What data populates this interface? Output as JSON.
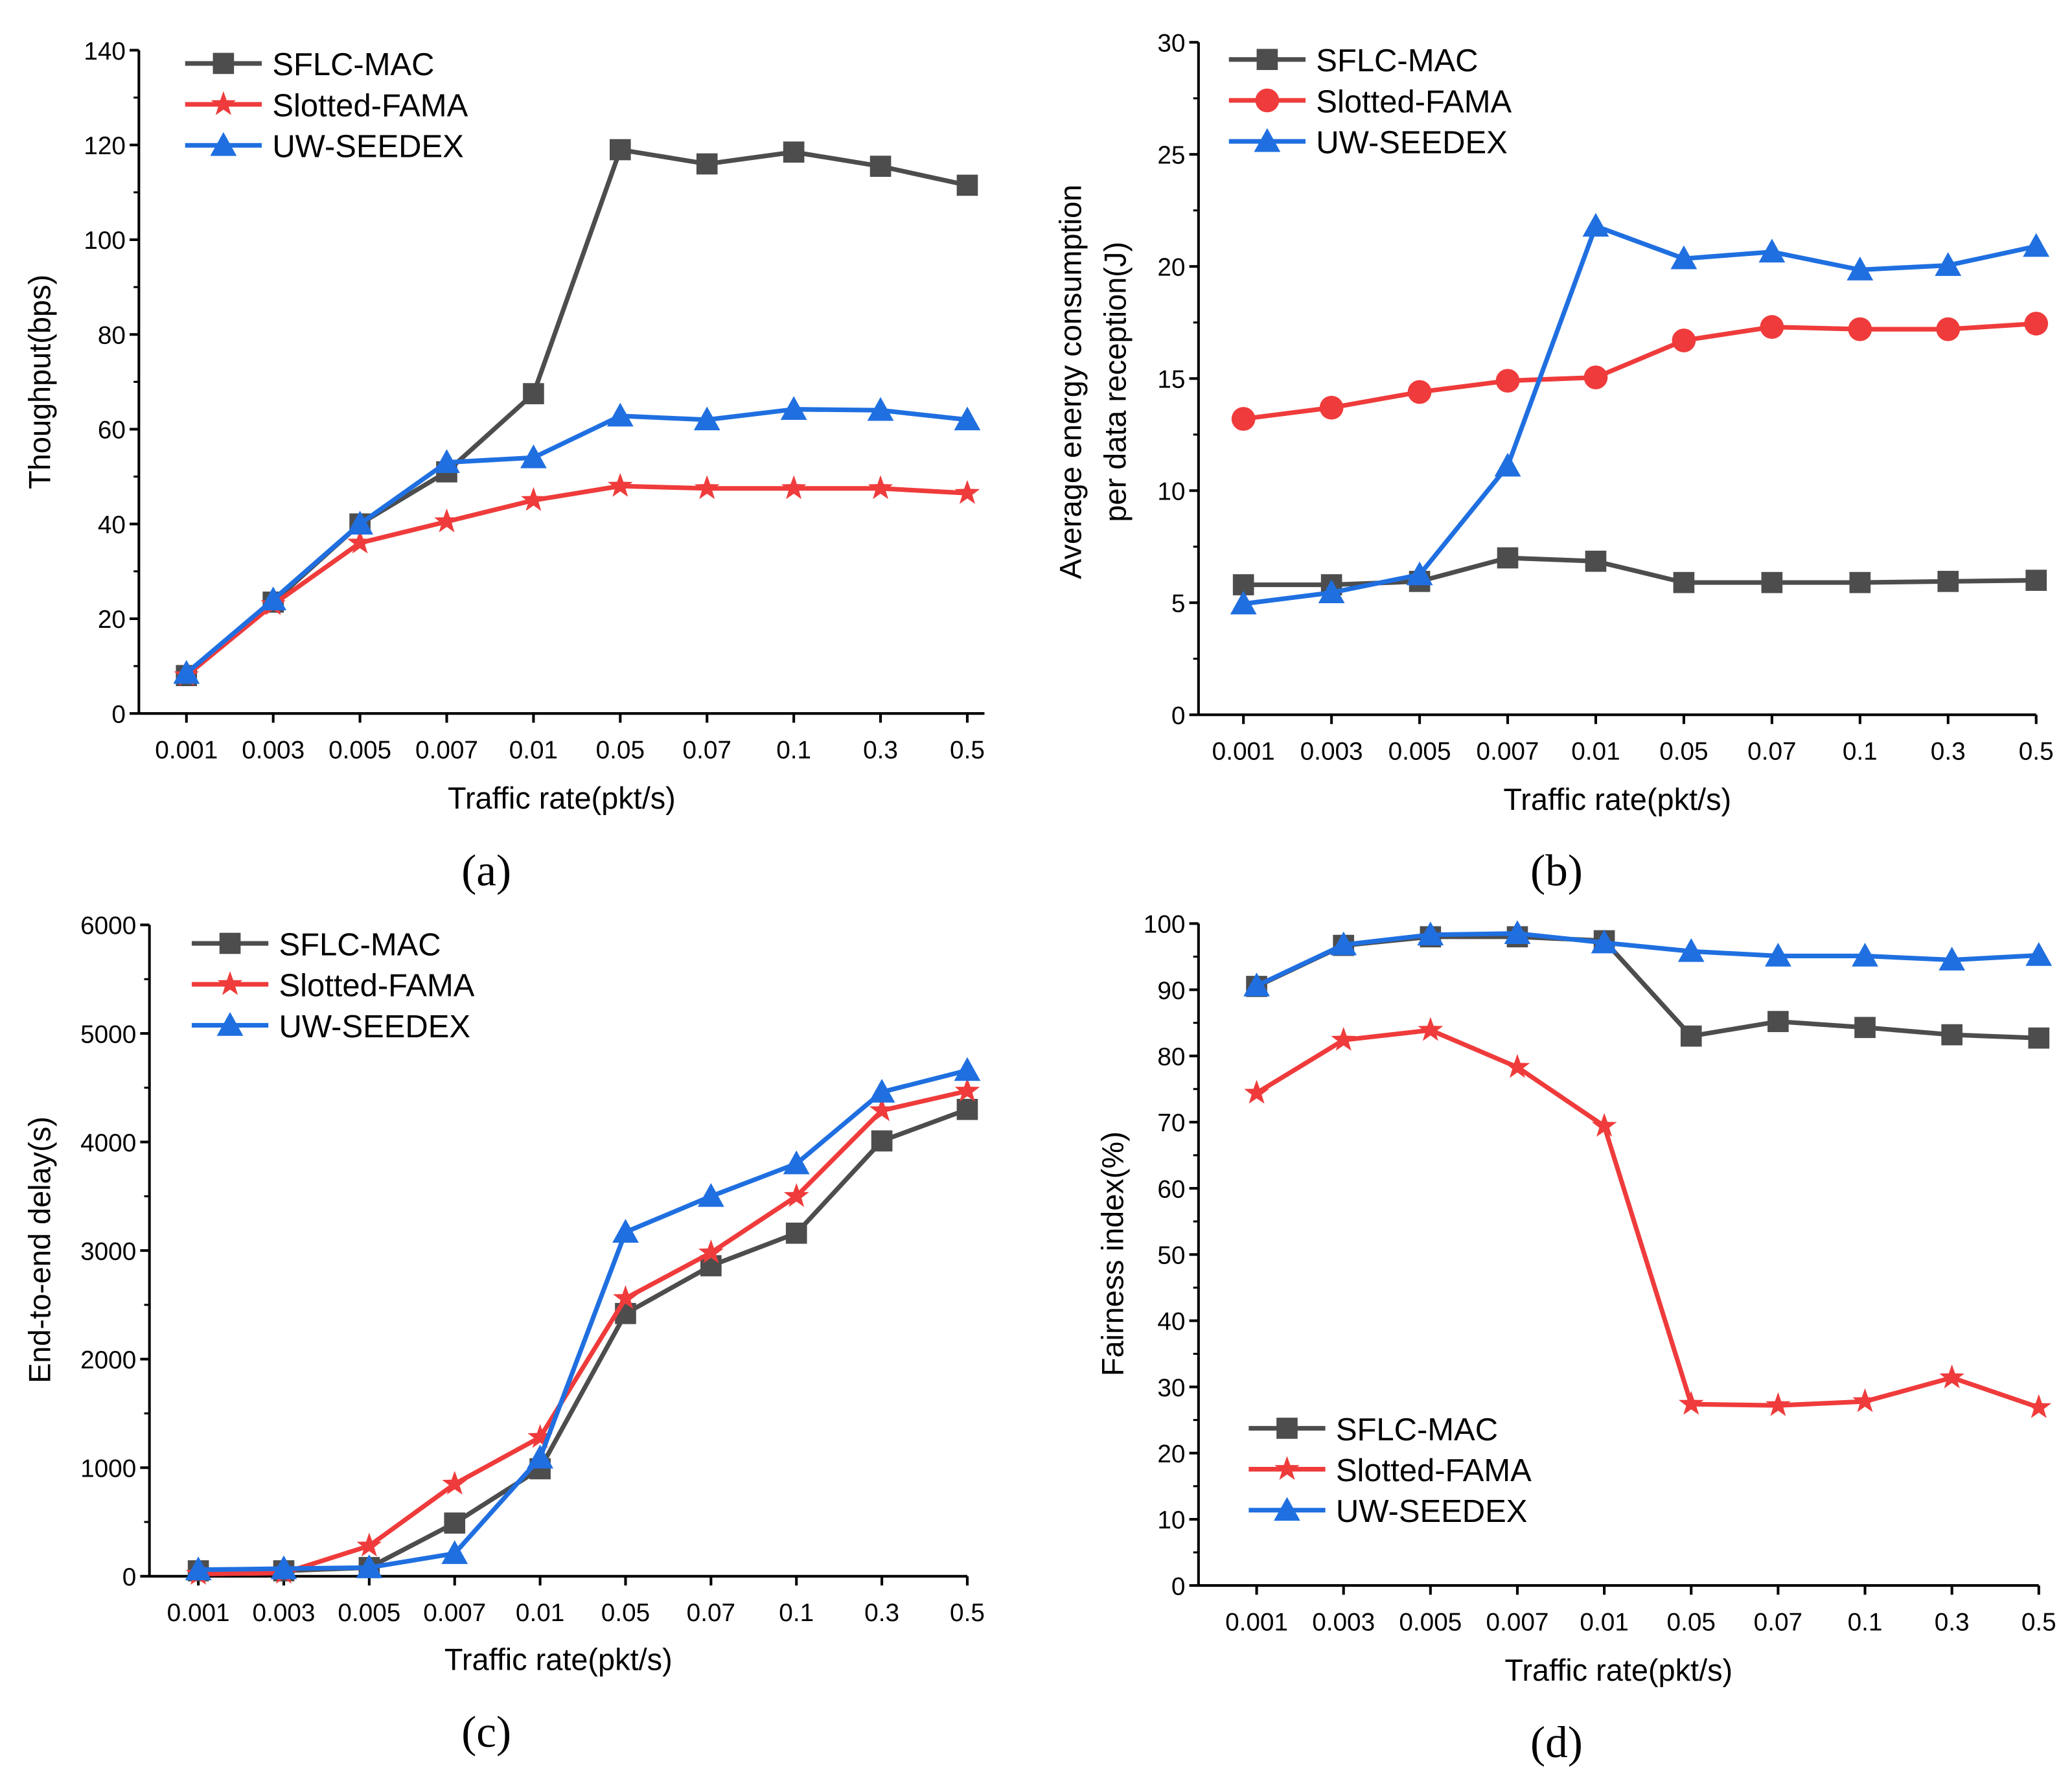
{
  "colors": {
    "SFLC-MAC": "#4d4d4d",
    "Slotted-FAMA": "#ef3b3b",
    "UW-SEEDEX": "#1f6fe0"
  },
  "chart_data": [
    {
      "id": "a",
      "caption": "(a)",
      "type": "line",
      "xlabel": "Traffic rate(pkt/s)",
      "ylabel": [
        "Thoughput(bps)"
      ],
      "categories": [
        "0.001",
        "0.003",
        "0.005",
        "0.007",
        "0.01",
        "0.05",
        "0.07",
        "0.1",
        "0.3",
        "0.5"
      ],
      "ylim": [
        0,
        140
      ],
      "yticks": [
        0,
        20,
        40,
        60,
        80,
        100,
        120,
        140
      ],
      "legend": "top-left",
      "series": [
        {
          "name": "SFLC-MAC",
          "marker": "square",
          "values": [
            8,
            23.5,
            40,
            51,
            67.5,
            119,
            116,
            118.5,
            115.5,
            111.5
          ]
        },
        {
          "name": "Slotted-FAMA",
          "marker": "star",
          "values": [
            8,
            23,
            36,
            40.5,
            45,
            48,
            47.5,
            47.5,
            47.5,
            46.5
          ]
        },
        {
          "name": "UW-SEEDEX",
          "marker": "triangle",
          "values": [
            8.5,
            24,
            40,
            53,
            54,
            62.8,
            62,
            64.2,
            64,
            62
          ]
        }
      ]
    },
    {
      "id": "b",
      "caption": "(b)",
      "type": "line",
      "xlabel": "Traffic rate(pkt/s)",
      "ylabel": [
        "Average energy consumption",
        "per data reception(J)"
      ],
      "categories": [
        "0.001",
        "0.003",
        "0.005",
        "0.007",
        "0.01",
        "0.05",
        "0.07",
        "0.1",
        "0.3",
        "0.5"
      ],
      "ylim": [
        0,
        30
      ],
      "yticks": [
        0,
        5,
        10,
        15,
        20,
        25,
        30
      ],
      "legend": "top-left",
      "series": [
        {
          "name": "SFLC-MAC",
          "marker": "square",
          "values": [
            5.8,
            5.8,
            5.95,
            7.0,
            6.85,
            5.9,
            5.9,
            5.9,
            5.95,
            6.0
          ]
        },
        {
          "name": "Slotted-FAMA",
          "marker": "circle",
          "values": [
            13.2,
            13.7,
            14.4,
            14.9,
            15.05,
            16.7,
            17.3,
            17.2,
            17.2,
            17.45
          ]
        },
        {
          "name": "UW-SEEDEX",
          "marker": "triangle",
          "values": [
            4.95,
            5.45,
            6.25,
            11.1,
            21.8,
            20.35,
            20.65,
            19.85,
            20.05,
            20.9
          ]
        }
      ]
    },
    {
      "id": "c",
      "caption": "(c)",
      "type": "line",
      "xlabel": "Traffic rate(pkt/s)",
      "ylabel": [
        "End-to-end delay(s)"
      ],
      "categories": [
        "0.001",
        "0.003",
        "0.005",
        "0.007",
        "0.01",
        "0.05",
        "0.07",
        "0.1",
        "0.3",
        "0.5"
      ],
      "ylim": [
        0,
        6000
      ],
      "yticks": [
        0,
        1000,
        2000,
        3000,
        4000,
        5000,
        6000
      ],
      "legend": "top-left",
      "series": [
        {
          "name": "SFLC-MAC",
          "marker": "square",
          "values": [
            50,
            50,
            80,
            490,
            990,
            2420,
            2860,
            3160,
            4010,
            4300
          ]
        },
        {
          "name": "Slotted-FAMA",
          "marker": "star",
          "values": [
            20,
            30,
            280,
            850,
            1280,
            2560,
            2980,
            3500,
            4290,
            4470
          ]
        },
        {
          "name": "UW-SEEDEX",
          "marker": "triangle",
          "values": [
            60,
            70,
            80,
            210,
            1090,
            3170,
            3500,
            3800,
            4460,
            4660
          ]
        }
      ]
    },
    {
      "id": "d",
      "caption": "(d)",
      "type": "line",
      "xlabel": "Traffic rate(pkt/s)",
      "ylabel": [
        "Fairness index(%)"
      ],
      "categories": [
        "0.001",
        "0.003",
        "0.005",
        "0.007",
        "0.01",
        "0.05",
        "0.07",
        "0.1",
        "0.3",
        "0.5"
      ],
      "ylim": [
        0,
        100
      ],
      "yticks": [
        0,
        10,
        20,
        30,
        40,
        50,
        60,
        70,
        80,
        90,
        100
      ],
      "legend": "bottom-left",
      "series": [
        {
          "name": "SFLC-MAC",
          "marker": "square",
          "values": [
            90.5,
            96.7,
            98.0,
            98.0,
            97.4,
            83.0,
            85.2,
            84.3,
            83.2,
            82.7
          ]
        },
        {
          "name": "Slotted-FAMA",
          "marker": "star",
          "values": [
            74.4,
            82.4,
            83.9,
            78.3,
            69.4,
            27.4,
            27.2,
            27.8,
            31.4,
            26.9
          ]
        },
        {
          "name": "UW-SEEDEX",
          "marker": "triangle",
          "values": [
            90.6,
            96.8,
            98.3,
            98.5,
            97.1,
            95.8,
            95.1,
            95.1,
            94.5,
            95.2
          ]
        }
      ]
    }
  ]
}
